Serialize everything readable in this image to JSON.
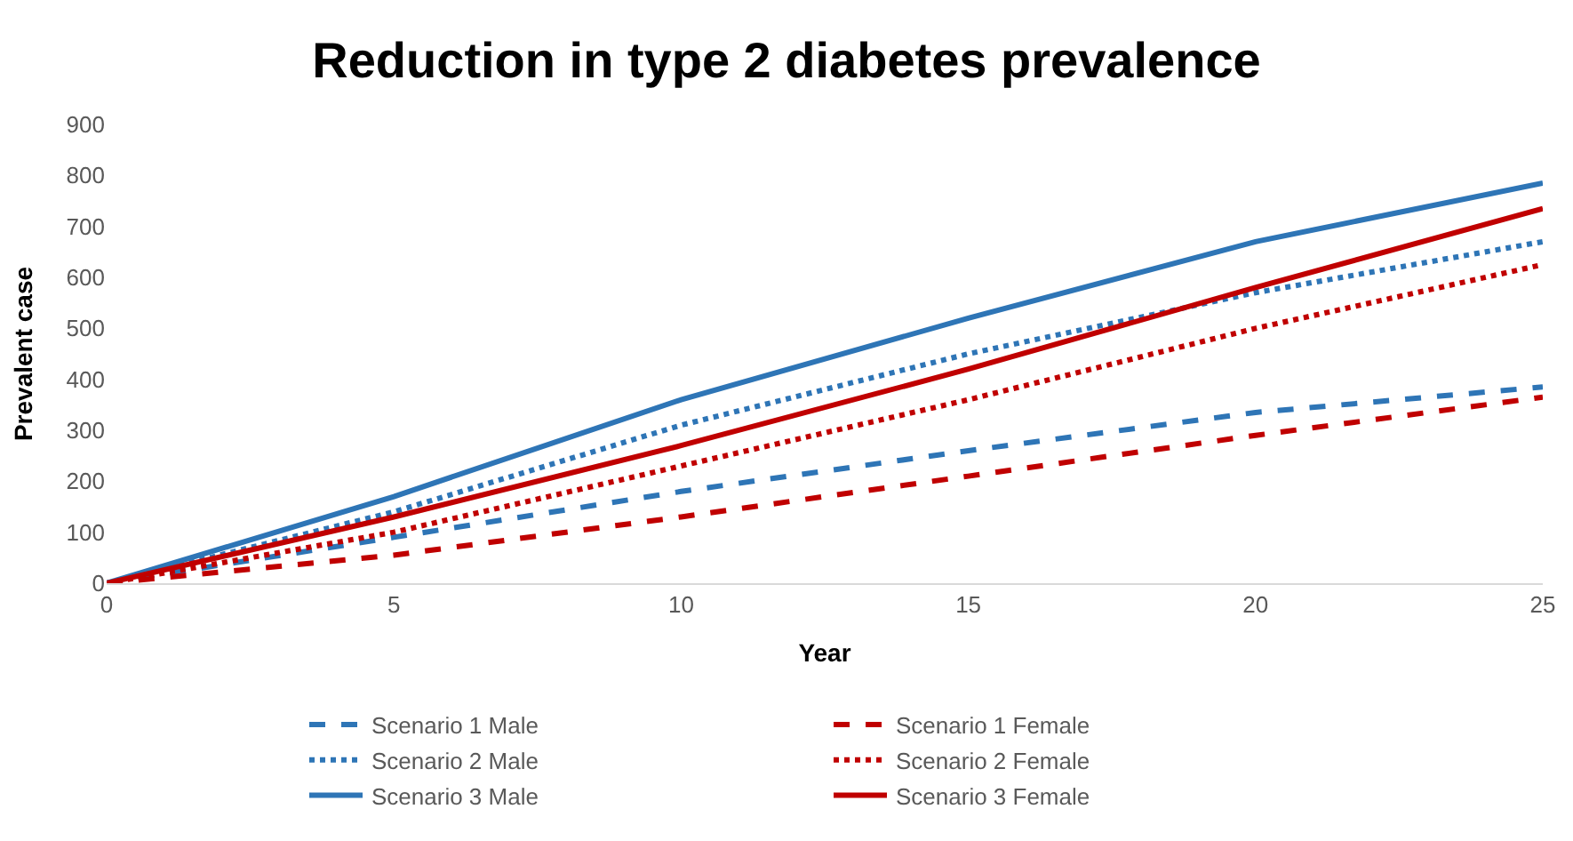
{
  "chart_data": {
    "type": "line",
    "title": "Reduction in type 2 diabetes prevalence",
    "xlabel": "Year",
    "ylabel": "Prevalent case",
    "x": [
      0,
      5,
      10,
      15,
      20,
      25
    ],
    "series": [
      {
        "name": "Scenario 1 Male",
        "color": "#2e75b6",
        "line_style": "dashed",
        "values": [
          0,
          90,
          180,
          260,
          335,
          385
        ]
      },
      {
        "name": "Scenario 1 Female",
        "color": "#c00000",
        "line_style": "dashed",
        "values": [
          0,
          55,
          130,
          210,
          290,
          365
        ]
      },
      {
        "name": "Scenario 2 Male",
        "color": "#2e75b6",
        "line_style": "dotted",
        "values": [
          0,
          140,
          310,
          450,
          570,
          670
        ]
      },
      {
        "name": "Scenario 2 Female",
        "color": "#c00000",
        "line_style": "dotted",
        "values": [
          0,
          100,
          230,
          360,
          500,
          625
        ]
      },
      {
        "name": "Scenario 3 Male",
        "color": "#2e75b6",
        "line_style": "solid",
        "values": [
          0,
          170,
          360,
          520,
          670,
          785
        ]
      },
      {
        "name": "Scenario 3 Female",
        "color": "#c00000",
        "line_style": "solid",
        "values": [
          0,
          130,
          270,
          420,
          580,
          735
        ]
      }
    ],
    "xlim": [
      0,
      25
    ],
    "xticks": [
      0,
      5,
      10,
      15,
      20,
      25
    ],
    "ylim": [
      0,
      900
    ],
    "yticks": [
      0,
      100,
      200,
      300,
      400,
      500,
      600,
      700,
      800,
      900
    ],
    "grid": false,
    "legend": "bottom",
    "marker": "none"
  }
}
